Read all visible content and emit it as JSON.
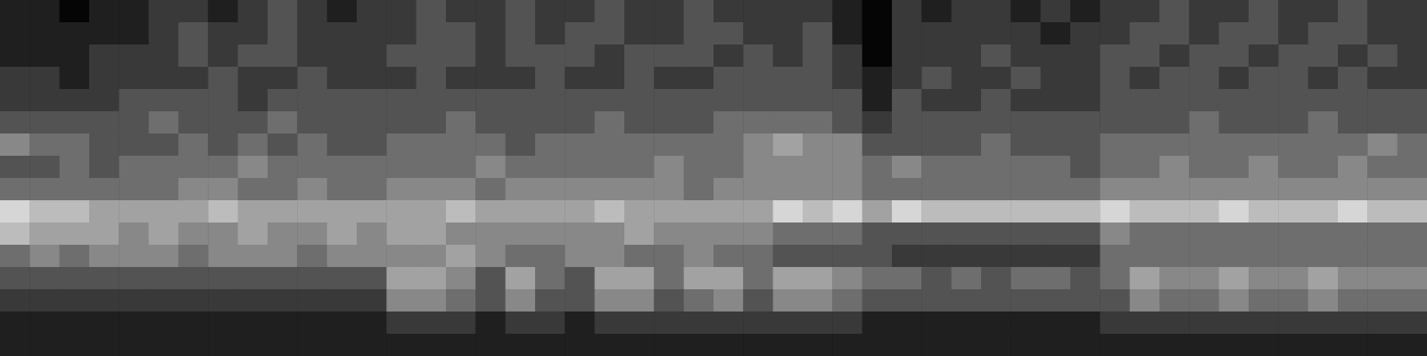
{
  "chart_data": {
    "type": "heatmap",
    "tick_labels": false,
    "z": [
      [
        1,
        1,
        0,
        1,
        1,
        2,
        2,
        1,
        2,
        3,
        2,
        1,
        2,
        2,
        3,
        2,
        2,
        3,
        2,
        2,
        3,
        2,
        2,
        3,
        2,
        2,
        2,
        2,
        1,
        0,
        2,
        1,
        2,
        2,
        1,
        2,
        1,
        2,
        2,
        3,
        2,
        2,
        3,
        2,
        2,
        3,
        2,
        2
      ],
      [
        1,
        1,
        1,
        1,
        1,
        2,
        3,
        2,
        2,
        3,
        2,
        2,
        2,
        2,
        3,
        3,
        2,
        3,
        2,
        3,
        3,
        2,
        2,
        3,
        3,
        2,
        2,
        3,
        1,
        0,
        2,
        2,
        2,
        2,
        2,
        1,
        2,
        2,
        3,
        3,
        2,
        3,
        3,
        2,
        3,
        3,
        2,
        2
      ],
      [
        1,
        1,
        1,
        2,
        2,
        2,
        3,
        2,
        3,
        3,
        2,
        2,
        2,
        3,
        3,
        3,
        2,
        3,
        3,
        3,
        2,
        3,
        3,
        3,
        2,
        3,
        2,
        3,
        2,
        0,
        2,
        2,
        2,
        3,
        2,
        2,
        2,
        3,
        3,
        2,
        3,
        3,
        2,
        3,
        3,
        2,
        3,
        2
      ],
      [
        2,
        2,
        1,
        2,
        2,
        2,
        2,
        3,
        2,
        2,
        3,
        2,
        2,
        2,
        3,
        2,
        2,
        2,
        3,
        2,
        2,
        3,
        2,
        2,
        3,
        3,
        3,
        3,
        2,
        1,
        2,
        3,
        2,
        2,
        3,
        2,
        2,
        3,
        2,
        3,
        3,
        2,
        3,
        3,
        2,
        3,
        2,
        2
      ],
      [
        2,
        2,
        2,
        2,
        3,
        3,
        3,
        3,
        2,
        3,
        3,
        3,
        3,
        3,
        3,
        3,
        3,
        3,
        3,
        3,
        3,
        3,
        3,
        3,
        3,
        3,
        3,
        3,
        3,
        1,
        3,
        2,
        2,
        3,
        2,
        2,
        2,
        3,
        3,
        3,
        3,
        3,
        3,
        3,
        3,
        3,
        3,
        3
      ],
      [
        3,
        3,
        3,
        3,
        3,
        4,
        3,
        3,
        3,
        4,
        3,
        3,
        3,
        3,
        3,
        4,
        3,
        3,
        3,
        3,
        4,
        3,
        3,
        3,
        4,
        4,
        4,
        4,
        3,
        2,
        3,
        3,
        3,
        3,
        3,
        3,
        3,
        3,
        3,
        3,
        4,
        3,
        3,
        3,
        4,
        3,
        3,
        3
      ],
      [
        5,
        4,
        4,
        3,
        3,
        3,
        4,
        3,
        4,
        3,
        4,
        3,
        3,
        4,
        4,
        4,
        4,
        3,
        4,
        4,
        4,
        4,
        4,
        4,
        4,
        5,
        6,
        5,
        5,
        3,
        3,
        3,
        3,
        4,
        3,
        3,
        3,
        4,
        4,
        4,
        4,
        4,
        4,
        4,
        4,
        4,
        5,
        4
      ],
      [
        3,
        3,
        4,
        3,
        4,
        4,
        4,
        4,
        5,
        4,
        4,
        4,
        4,
        4,
        4,
        4,
        5,
        4,
        4,
        4,
        4,
        4,
        5,
        4,
        4,
        5,
        5,
        5,
        5,
        4,
        5,
        4,
        4,
        4,
        4,
        4,
        3,
        4,
        4,
        5,
        4,
        4,
        5,
        4,
        4,
        5,
        4,
        4
      ],
      [
        4,
        4,
        4,
        4,
        4,
        4,
        5,
        5,
        4,
        4,
        5,
        4,
        4,
        5,
        5,
        5,
        4,
        5,
        5,
        5,
        5,
        5,
        5,
        4,
        5,
        5,
        5,
        5,
        5,
        4,
        4,
        4,
        4,
        4,
        4,
        4,
        4,
        5,
        5,
        5,
        5,
        5,
        5,
        5,
        5,
        5,
        5,
        5
      ],
      [
        8,
        7,
        7,
        6,
        6,
        6,
        6,
        7,
        6,
        6,
        6,
        6,
        6,
        6,
        6,
        7,
        6,
        6,
        6,
        6,
        7,
        6,
        6,
        6,
        6,
        6,
        8,
        7,
        8,
        6,
        8,
        7,
        7,
        7,
        7,
        7,
        7,
        8,
        7,
        7,
        7,
        8,
        7,
        7,
        7,
        8,
        7,
        7
      ],
      [
        7,
        6,
        6,
        6,
        5,
        6,
        5,
        5,
        6,
        5,
        5,
        6,
        5,
        6,
        6,
        5,
        5,
        5,
        5,
        5,
        5,
        6,
        5,
        5,
        5,
        5,
        4,
        4,
        4,
        3,
        3,
        3,
        3,
        3,
        3,
        3,
        3,
        5,
        4,
        4,
        4,
        4,
        4,
        4,
        4,
        4,
        4,
        4
      ],
      [
        4,
        5,
        4,
        5,
        5,
        5,
        4,
        5,
        5,
        5,
        4,
        5,
        5,
        5,
        5,
        6,
        5,
        4,
        4,
        5,
        5,
        4,
        4,
        5,
        4,
        4,
        3,
        3,
        3,
        3,
        2,
        2,
        2,
        2,
        2,
        2,
        2,
        4,
        4,
        4,
        4,
        4,
        4,
        4,
        4,
        4,
        4,
        4
      ],
      [
        3,
        3,
        3,
        3,
        3,
        3,
        3,
        3,
        3,
        3,
        3,
        3,
        3,
        6,
        6,
        5,
        3,
        6,
        4,
        3,
        6,
        6,
        4,
        6,
        6,
        4,
        6,
        6,
        5,
        4,
        4,
        3,
        4,
        3,
        4,
        4,
        3,
        4,
        6,
        5,
        5,
        6,
        5,
        5,
        6,
        5,
        5,
        5
      ],
      [
        2,
        2,
        2,
        2,
        2,
        2,
        2,
        2,
        2,
        2,
        2,
        2,
        2,
        5,
        5,
        4,
        3,
        5,
        3,
        3,
        5,
        5,
        3,
        4,
        5,
        3,
        5,
        5,
        4,
        3,
        3,
        3,
        3,
        3,
        3,
        3,
        3,
        3,
        5,
        4,
        4,
        5,
        4,
        4,
        5,
        4,
        4,
        4
      ],
      [
        1,
        1,
        1,
        1,
        1,
        1,
        1,
        1,
        1,
        1,
        1,
        1,
        1,
        2,
        2,
        2,
        1,
        2,
        2,
        1,
        2,
        2,
        2,
        2,
        2,
        2,
        2,
        2,
        2,
        1,
        1,
        1,
        1,
        1,
        1,
        1,
        1,
        2,
        2,
        2,
        2,
        2,
        2,
        2,
        2,
        2,
        2,
        2
      ],
      [
        1,
        1,
        1,
        1,
        1,
        1,
        1,
        1,
        1,
        1,
        1,
        1,
        1,
        1,
        1,
        1,
        1,
        1,
        1,
        1,
        1,
        1,
        1,
        1,
        1,
        1,
        1,
        1,
        1,
        1,
        1,
        1,
        1,
        1,
        1,
        1,
        1,
        1,
        1,
        1,
        1,
        1,
        1,
        1,
        1,
        1,
        1,
        1
      ]
    ]
  }
}
